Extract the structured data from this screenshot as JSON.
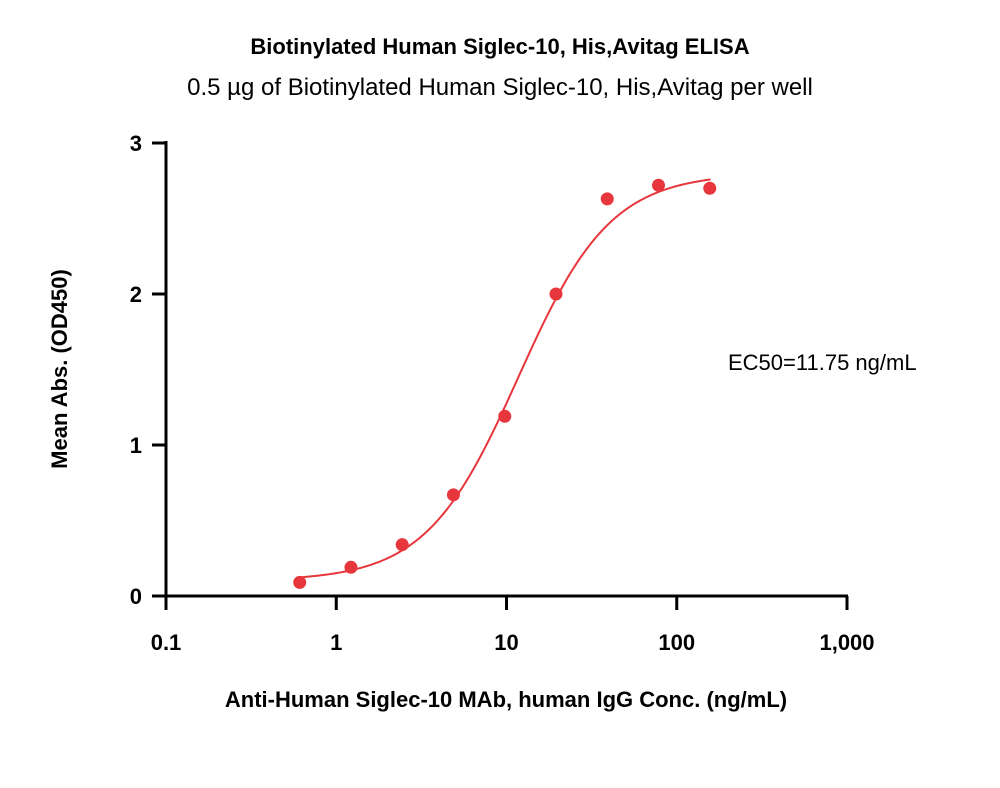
{
  "chart_data": {
    "type": "scatter",
    "title": "Biotinylated Human Siglec-10, His,Avitag ELISA",
    "subtitle": "0.5 µg of Biotinylated Human Siglec-10, His,Avitag per well",
    "xlabel": "Anti-Human Siglec-10 MAb, human IgG Conc. (ng/mL)",
    "ylabel": "Mean Abs. (OD450)",
    "x_scale": "log",
    "xlim": [
      0.1,
      1000
    ],
    "ylim": [
      0,
      3
    ],
    "x_ticks": [
      {
        "value": 0.1,
        "label": "0.1"
      },
      {
        "value": 1,
        "label": "1"
      },
      {
        "value": 10,
        "label": "10"
      },
      {
        "value": 100,
        "label": "100"
      },
      {
        "value": 1000,
        "label": "1,000"
      }
    ],
    "y_ticks": [
      {
        "value": 0,
        "label": "0"
      },
      {
        "value": 1,
        "label": "1"
      },
      {
        "value": 2,
        "label": "2"
      },
      {
        "value": 3,
        "label": "3"
      }
    ],
    "series": [
      {
        "color": "#e8363d",
        "x": [
          0.61,
          1.22,
          2.44,
          4.88,
          9.77,
          19.53,
          39.06,
          78.13,
          156.25
        ],
        "y": [
          0.09,
          0.19,
          0.34,
          0.67,
          1.19,
          2.0,
          2.63,
          2.72,
          2.7
        ]
      }
    ],
    "fit_curve": {
      "model": "4PL",
      "bottom": 0.1,
      "top": 2.8,
      "ec50": 11.75,
      "hill": 1.6,
      "x_range": [
        0.6,
        158
      ],
      "color": "#e8363d"
    },
    "annotations": [
      {
        "text": "EC50=11.75 ng/mL"
      }
    ],
    "grid": false,
    "legend": "none"
  }
}
